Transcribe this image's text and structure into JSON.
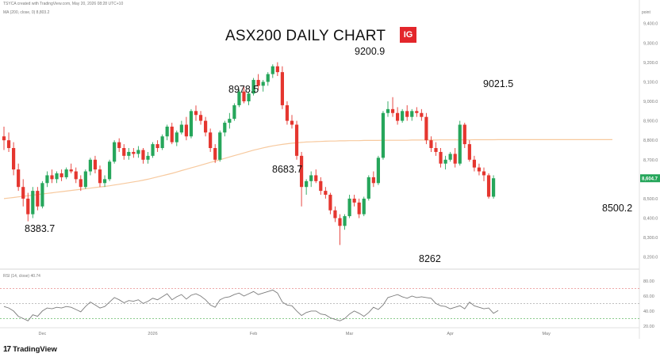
{
  "header": {
    "info_text": "TSYCA created with TradingView.com, May 20, 2026 08:28 UTC+10",
    "ma_legend": "MA (200, close, 0) 8,803.2",
    "title": "ASX200 DAILY CHART",
    "brand_badge": "IG"
  },
  "footer": {
    "brand": "TradingView",
    "brand_logo": "17"
  },
  "colors": {
    "up": "#26a65b",
    "down": "#e5362f",
    "ma": "#f7c99e",
    "rsi_line": "#7b7b7b",
    "rsi_upper": "#e88c8c",
    "rsi_mid": "#b8b8b8",
    "rsi_lower": "#7cc47f",
    "last_price_badge": "#26a65b"
  },
  "chart_data": [
    {
      "type": "candlestick",
      "title": "ASX200 DAILY CHART",
      "price_unit": "point",
      "ylim": [
        8150,
        9480
      ],
      "y_ticks": [
        "9,400.0",
        "9,300.0",
        "9,200.0",
        "9,100.0",
        "9,000.0",
        "8,900.0",
        "8,800.0",
        "8,700.0",
        "8,600.0",
        "8,500.0",
        "8,400.0",
        "8,300.0",
        "8,200.0"
      ],
      "y_tick_values": [
        9400,
        9300,
        9200,
        9100,
        9000,
        8900,
        8800,
        8700,
        8600,
        8500,
        8400,
        8300,
        8200
      ],
      "x_labels": [
        "Dec",
        "2026",
        "Feb",
        "Mar",
        "Apr",
        "May"
      ],
      "x_label_sessions": [
        8,
        31,
        52,
        72,
        93,
        113
      ],
      "last_price": "8,604.7",
      "ma_label": "MA (200, close, 0)",
      "ma_last": 8803.2,
      "annotations": [
        {
          "text": "8383.7",
          "session": 5,
          "price": 8383.7
        },
        {
          "text": "8978.5",
          "session": 49,
          "price": 8978.5
        },
        {
          "text": "8683.7",
          "session": 57,
          "price": 8683.7
        },
        {
          "text": "9200.9",
          "session": 74,
          "price": 9200.9
        },
        {
          "text": "8262",
          "session": 88,
          "price": 8262
        },
        {
          "text": "9021.5",
          "session": 103,
          "price": 9021.5
        },
        {
          "text": "8500.2",
          "session": 126,
          "price": 8500.2
        }
      ],
      "ohlc": [
        [
          8820,
          8870,
          8750,
          8800
        ],
        [
          8800,
          8840,
          8740,
          8760
        ],
        [
          8760,
          8790,
          8620,
          8650
        ],
        [
          8650,
          8680,
          8540,
          8560
        ],
        [
          8560,
          8600,
          8460,
          8500
        ],
        [
          8500,
          8530,
          8383.7,
          8420
        ],
        [
          8420,
          8560,
          8400,
          8540
        ],
        [
          8540,
          8560,
          8440,
          8460
        ],
        [
          8460,
          8590,
          8450,
          8580
        ],
        [
          8580,
          8640,
          8560,
          8620
        ],
        [
          8620,
          8650,
          8580,
          8600
        ],
        [
          8600,
          8640,
          8580,
          8630
        ],
        [
          8630,
          8650,
          8590,
          8610
        ],
        [
          8610,
          8660,
          8600,
          8650
        ],
        [
          8650,
          8680,
          8630,
          8640
        ],
        [
          8640,
          8660,
          8580,
          8600
        ],
        [
          8600,
          8620,
          8540,
          8560
        ],
        [
          8560,
          8650,
          8550,
          8640
        ],
        [
          8640,
          8710,
          8620,
          8700
        ],
        [
          8700,
          8720,
          8630,
          8650
        ],
        [
          8650,
          8670,
          8560,
          8580
        ],
        [
          8580,
          8620,
          8560,
          8600
        ],
        [
          8600,
          8700,
          8590,
          8690
        ],
        [
          8690,
          8800,
          8680,
          8790
        ],
        [
          8790,
          8810,
          8740,
          8760
        ],
        [
          8760,
          8780,
          8700,
          8720
        ],
        [
          8720,
          8760,
          8700,
          8740
        ],
        [
          8740,
          8760,
          8710,
          8730
        ],
        [
          8730,
          8770,
          8710,
          8750
        ],
        [
          8750,
          8760,
          8680,
          8700
        ],
        [
          8700,
          8740,
          8680,
          8720
        ],
        [
          8720,
          8790,
          8710,
          8780
        ],
        [
          8780,
          8800,
          8740,
          8760
        ],
        [
          8760,
          8830,
          8750,
          8820
        ],
        [
          8820,
          8880,
          8800,
          8870
        ],
        [
          8870,
          8890,
          8780,
          8790
        ],
        [
          8790,
          8850,
          8770,
          8840
        ],
        [
          8840,
          8900,
          8830,
          8880
        ],
        [
          8880,
          8920,
          8800,
          8820
        ],
        [
          8820,
          8960,
          8810,
          8950
        ],
        [
          8950,
          8978.5,
          8900,
          8930
        ],
        [
          8930,
          8950,
          8880,
          8900
        ],
        [
          8900,
          8920,
          8820,
          8840
        ],
        [
          8840,
          8860,
          8740,
          8760
        ],
        [
          8760,
          8780,
          8683.7,
          8700
        ],
        [
          8700,
          8850,
          8690,
          8840
        ],
        [
          8840,
          8900,
          8820,
          8890
        ],
        [
          8890,
          8940,
          8860,
          8910
        ],
        [
          8910,
          8990,
          8900,
          8980
        ],
        [
          8980,
          9060,
          8970,
          9050
        ],
        [
          9050,
          9080,
          8990,
          9000
        ],
        [
          9000,
          9050,
          8980,
          9040
        ],
        [
          9040,
          9120,
          9030,
          9110
        ],
        [
          9110,
          9140,
          9060,
          9080
        ],
        [
          9080,
          9110,
          9050,
          9100
        ],
        [
          9100,
          9150,
          9080,
          9140
        ],
        [
          9140,
          9190,
          9120,
          9180
        ],
        [
          9180,
          9200.9,
          9130,
          9150
        ],
        [
          9150,
          9180,
          8960,
          8980
        ],
        [
          8980,
          9000,
          8880,
          8900
        ],
        [
          8900,
          8930,
          8860,
          8880
        ],
        [
          8880,
          8900,
          8700,
          8720
        ],
        [
          8720,
          8740,
          8460,
          8560
        ],
        [
          8560,
          8600,
          8520,
          8590
        ],
        [
          8590,
          8640,
          8560,
          8620
        ],
        [
          8620,
          8650,
          8580,
          8590
        ],
        [
          8590,
          8610,
          8520,
          8540
        ],
        [
          8540,
          8560,
          8500,
          8520
        ],
        [
          8520,
          8530,
          8420,
          8440
        ],
        [
          8440,
          8460,
          8380,
          8400
        ],
        [
          8400,
          8420,
          8262,
          8360
        ],
        [
          8360,
          8420,
          8340,
          8410
        ],
        [
          8410,
          8520,
          8400,
          8500
        ],
        [
          8500,
          8520,
          8460,
          8480
        ],
        [
          8480,
          8500,
          8400,
          8420
        ],
        [
          8420,
          8510,
          8410,
          8500
        ],
        [
          8500,
          8620,
          8490,
          8610
        ],
        [
          8610,
          8640,
          8560,
          8580
        ],
        [
          8580,
          8720,
          8570,
          8710
        ],
        [
          8710,
          8950,
          8700,
          8940
        ],
        [
          8940,
          9000,
          8920,
          8960
        ],
        [
          8960,
          9021.5,
          8920,
          8940
        ],
        [
          8940,
          8970,
          8880,
          8900
        ],
        [
          8900,
          8960,
          8890,
          8950
        ],
        [
          8950,
          8980,
          8900,
          8920
        ],
        [
          8920,
          8960,
          8900,
          8950
        ],
        [
          8950,
          8970,
          8920,
          8940
        ],
        [
          8940,
          8960,
          8900,
          8920
        ],
        [
          8920,
          8940,
          8780,
          8800
        ],
        [
          8800,
          8820,
          8740,
          8760
        ],
        [
          8760,
          8790,
          8720,
          8740
        ],
        [
          8740,
          8760,
          8660,
          8680
        ],
        [
          8680,
          8720,
          8650,
          8700
        ],
        [
          8700,
          8740,
          8690,
          8730
        ],
        [
          8730,
          8760,
          8660,
          8680
        ],
        [
          8680,
          8900,
          8670,
          8880
        ],
        [
          8880,
          8890,
          8760,
          8780
        ],
        [
          8780,
          8800,
          8690,
          8700
        ],
        [
          8700,
          8720,
          8640,
          8660
        ],
        [
          8660,
          8680,
          8620,
          8640
        ],
        [
          8640,
          8660,
          8590,
          8620
        ],
        [
          8620,
          8630,
          8500.2,
          8510
        ],
        [
          8510,
          8620,
          8500,
          8604.7
        ]
      ],
      "ma": [
        8500,
        8503,
        8506,
        8509,
        8512,
        8515,
        8518,
        8521,
        8524,
        8527,
        8530,
        8533,
        8536,
        8539,
        8542,
        8545,
        8548,
        8551,
        8554,
        8557,
        8560,
        8563,
        8566,
        8570,
        8574,
        8578,
        8582,
        8586,
        8590,
        8595,
        8600,
        8606,
        8612,
        8618,
        8624,
        8630,
        8637,
        8644,
        8651,
        8658,
        8665,
        8672,
        8679,
        8686,
        8693,
        8700,
        8707,
        8714,
        8721,
        8728,
        8735,
        8742,
        8749,
        8755,
        8761,
        8766,
        8771,
        8775,
        8779,
        8782,
        8785,
        8787,
        8789,
        8791,
        8792,
        8793,
        8794,
        8795,
        8796,
        8796,
        8797,
        8797,
        8798,
        8798,
        8798,
        8799,
        8799,
        8799,
        8799,
        8800,
        8800,
        8800,
        8800,
        8800,
        8800,
        8801,
        8801,
        8801,
        8801,
        8801,
        8801,
        8802,
        8802,
        8802,
        8802,
        8802,
        8802,
        8802,
        8803,
        8803,
        8803,
        8803,
        8803,
        8803.2
      ]
    },
    {
      "type": "line",
      "label": "RSI (14, close) 40.74",
      "ylim": [
        22,
        80
      ],
      "y_ticks": [
        "80.00",
        "60.00",
        "40.00",
        "20.00"
      ],
      "y_tick_values": [
        80,
        60,
        40,
        20
      ],
      "levels": [
        70,
        50,
        30
      ],
      "last_value": 40.74,
      "values": [
        46,
        44,
        40,
        33,
        30,
        27,
        35,
        33,
        40,
        44,
        43,
        45,
        44,
        46,
        45,
        42,
        39,
        46,
        52,
        48,
        44,
        46,
        52,
        58,
        55,
        51,
        54,
        53,
        55,
        50,
        53,
        57,
        55,
        59,
        63,
        55,
        59,
        62,
        56,
        61,
        63,
        60,
        55,
        48,
        45,
        55,
        58,
        59,
        62,
        64,
        60,
        63,
        66,
        62,
        64,
        66,
        68,
        64,
        52,
        48,
        47,
        40,
        34,
        38,
        40,
        40,
        36,
        35,
        31,
        29,
        27,
        30,
        36,
        40,
        37,
        33,
        38,
        45,
        42,
        48,
        58,
        60,
        62,
        59,
        57,
        60,
        58,
        59,
        58,
        57,
        50,
        47,
        46,
        43,
        45,
        47,
        43,
        52,
        47,
        45,
        43,
        44,
        37,
        40.74
      ]
    }
  ]
}
